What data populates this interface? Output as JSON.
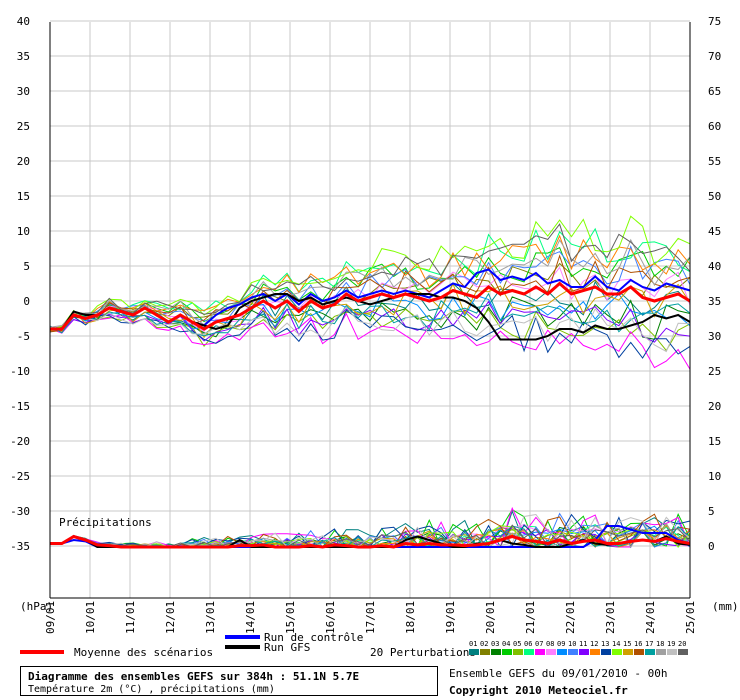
{
  "chart_data": {
    "type": "line",
    "title": "Diagramme des ensembles GEFS sur 384h : 51.1N 5.7E",
    "subtitle": "Température 2m (°C) , précipitations (mm)",
    "left_axis": {
      "unit": "(hPa)",
      "range": [
        -35,
        40
      ],
      "ticks": [
        "40",
        "35",
        "30",
        "25",
        "20",
        "15",
        "10",
        "5",
        "0",
        "-5",
        "-10",
        "-15",
        "-20",
        "-25",
        "-30",
        "-35"
      ]
    },
    "right_axis": {
      "unit": "(mm)",
      "range": [
        0,
        75
      ],
      "ticks": [
        "75",
        "70",
        "65",
        "60",
        "55",
        "50",
        "45",
        "40",
        "35",
        "30",
        "25",
        "20",
        "15",
        "10",
        "5",
        "0"
      ]
    },
    "x_ticks": [
      "09/01",
      "10/01",
      "11/01",
      "12/01",
      "13/01",
      "14/01",
      "15/01",
      "16/01",
      "17/01",
      "18/01",
      "19/01",
      "20/01",
      "21/01",
      "22/01",
      "23/01",
      "24/01",
      "25/01"
    ],
    "grid": true,
    "precip_label": "Précipitations",
    "legend": {
      "moyenne": "Moyenne des scénarios",
      "controle": "Run de contrôle",
      "gfs": "Run GFS",
      "perturbations": "20 Perturbations",
      "member_labels": [
        "01",
        "02",
        "03",
        "04",
        "05",
        "06",
        "07",
        "08",
        "09",
        "10",
        "11",
        "12",
        "13",
        "14",
        "15",
        "16",
        "17",
        "18",
        "19",
        "20"
      ]
    },
    "colors": {
      "mean": "#ff0000",
      "control": "#0000ff",
      "gfs": "#000000",
      "members": [
        "#008080",
        "#808000",
        "#008000",
        "#00cc00",
        "#80c000",
        "#00ff80",
        "#ff00ff",
        "#ff80ff",
        "#008cff",
        "#4080ff",
        "#8000ff",
        "#ff8000",
        "#0040a0",
        "#80ff00",
        "#d0a000",
        "#b05000",
        "#00a0a0",
        "#a0a0a0",
        "#c0c0c0",
        "#606060"
      ]
    },
    "series": [
      {
        "name": "Moyenne des scénarios",
        "values": [
          -4,
          -4,
          -2,
          -2.5,
          -2,
          -1,
          -1.5,
          -2,
          -1,
          -2,
          -3,
          -2,
          -3,
          -4,
          -3,
          -2.5,
          -2,
          -1,
          0,
          -1,
          0,
          -1.5,
          0,
          -1,
          -0.5,
          1,
          0,
          0.5,
          1,
          0.5,
          1,
          0.5,
          0,
          0.5,
          1.5,
          1,
          0.5,
          2,
          1,
          1.5,
          1,
          2,
          1,
          2.5,
          1,
          1.5,
          2,
          1,
          1,
          2,
          0.5,
          0,
          0.5,
          1,
          0
        ]
      },
      {
        "name": "Run de contrôle",
        "values": [
          -4,
          -4,
          -2,
          -2.5,
          -2,
          -1,
          -1.5,
          -2,
          -1,
          -2,
          -3,
          -2,
          -3,
          -3.5,
          -2,
          -1,
          -0.5,
          0.5,
          1,
          0,
          1,
          -0.5,
          1,
          0,
          0.5,
          1.5,
          0.5,
          1,
          1.5,
          1,
          1.5,
          1,
          0.5,
          1.5,
          2.5,
          2,
          4,
          4.5,
          3,
          3.5,
          3,
          4,
          2.5,
          3,
          2,
          2,
          3.5,
          2,
          1.5,
          3,
          2,
          1.5,
          2.5,
          2,
          1.5
        ]
      },
      {
        "name": "Run GFS",
        "values": [
          -4,
          -4,
          -1.5,
          -2,
          -2,
          -1,
          -1.5,
          -2,
          -1,
          -2,
          -3,
          -2,
          -3,
          -3.5,
          -4,
          -3.5,
          -1,
          0,
          0.5,
          1,
          1,
          0,
          0.5,
          -0.5,
          0,
          0.5,
          0,
          -0.5,
          0,
          0.5,
          1,
          1,
          1,
          0.5,
          0.5,
          0,
          -1,
          -3,
          -5.5,
          -5.5,
          -5.5,
          -5.5,
          -5,
          -4,
          -4,
          -4.5,
          -3.5,
          -4,
          -4,
          -3.5,
          -3,
          -2,
          -2.5,
          -2,
          -3
        ]
      }
    ],
    "precipitation": {
      "mean": [
        0.5,
        0.5,
        1.5,
        1,
        0.3,
        0.2,
        0,
        0,
        0,
        0,
        0,
        0,
        0,
        0,
        0,
        0,
        0.2,
        0.2,
        0.3,
        0,
        0,
        0,
        0.2,
        0,
        0.3,
        0.2,
        0,
        0,
        0.2,
        0,
        0.5,
        0.3,
        0.5,
        0.3,
        0.3,
        0.2,
        0.3,
        0.5,
        1,
        1.5,
        1,
        0.8,
        0.5,
        1,
        0.5,
        0.8,
        1,
        0.5,
        0.5,
        0.8,
        1,
        0.8,
        1.2,
        0.8,
        0.5
      ],
      "control": [
        0.5,
        0.5,
        1,
        0.8,
        0,
        0,
        0,
        0,
        0,
        0,
        0,
        0,
        0,
        0,
        0,
        0,
        0,
        0,
        0,
        0,
        0,
        0,
        0,
        0,
        0,
        0,
        0,
        0,
        0,
        0,
        0,
        0,
        0,
        0,
        0,
        0,
        0,
        0,
        0,
        0,
        0,
        0,
        0,
        0,
        0,
        0,
        1,
        3,
        3,
        2.5,
        2,
        2,
        2,
        1,
        0.5
      ],
      "gfs": [
        0.5,
        0.5,
        1.5,
        1,
        0,
        0,
        0,
        0,
        0,
        0,
        0,
        0,
        0,
        0,
        0,
        0,
        1,
        0,
        0,
        0,
        0,
        0,
        0,
        0,
        0,
        0,
        0,
        0,
        0,
        0,
        1,
        1.5,
        1,
        0.5,
        0,
        0,
        0.5,
        0.5,
        1,
        0.5,
        0.3,
        0,
        0,
        0,
        0.5,
        1,
        0.5,
        0.3,
        0.5,
        0.8,
        1,
        0.8,
        1.5,
        0.5,
        0.3
      ]
    }
  }
}
